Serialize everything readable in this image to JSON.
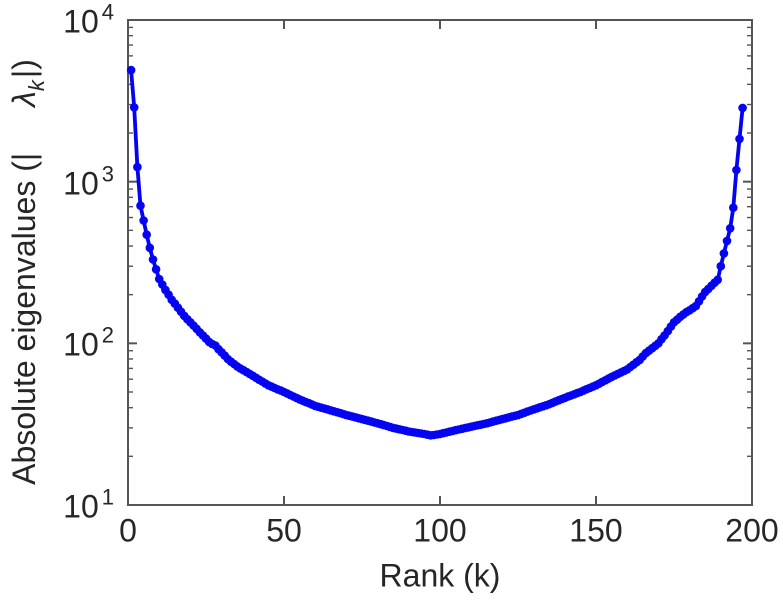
{
  "colors": {
    "background": "#ffffff",
    "line": "#0404f2",
    "axis": "#545454",
    "text": "#262626"
  },
  "chart_data": {
    "type": "line",
    "title": "",
    "xlabel": "Rank (k)",
    "ylabel": "Absolute eigenvalues (|λk|)",
    "ylabel_parts": {
      "prefix": "Absolute eigenvalues (|",
      "symbol": "λ",
      "subscript": "k",
      "suffix": "|)"
    },
    "x_scale": "linear",
    "y_scale": "log",
    "xlim": [
      0,
      200
    ],
    "ylim_log10": [
      1,
      4
    ],
    "x_ticks": [
      0,
      50,
      100,
      150,
      200
    ],
    "y_ticks": [
      {
        "value": 10,
        "base": "10",
        "exp": "1"
      },
      {
        "value": 100,
        "base": "10",
        "exp": "2"
      },
      {
        "value": 1000,
        "base": "10",
        "exp": "3"
      },
      {
        "value": 10000,
        "base": "10",
        "exp": "4"
      }
    ],
    "y_minor_ticks_per_decade": [
      2,
      3,
      4,
      5,
      6,
      7,
      8,
      9
    ],
    "grid": false,
    "legend": null,
    "marker": "filled-circle",
    "series": [
      {
        "name": "absolute eigenvalues |λk|",
        "color": "#0404f2",
        "x_start": 1,
        "x_step": 1,
        "values": [
          4900,
          2880,
          1230,
          710,
          575,
          470,
          390,
          330,
          287,
          250,
          231,
          214,
          200,
          186,
          176,
          166,
          157,
          148,
          141,
          135,
          129,
          123,
          117,
          112,
          107,
          102,
          99,
          97,
          92,
          88,
          84,
          80,
          77,
          74.5,
          72,
          70,
          68.2,
          66.4,
          64.7,
          63,
          61.3,
          59.6,
          58.1,
          56.5,
          55,
          54,
          52.9,
          51.9,
          51,
          50,
          49,
          47.9,
          46.9,
          46,
          45,
          44.2,
          43.3,
          42.6,
          41.8,
          41,
          40.5,
          40,
          39.5,
          39,
          38.5,
          38,
          37.5,
          37,
          36.5,
          36,
          35.6,
          35.2,
          34.8,
          34.4,
          34,
          33.6,
          33.2,
          32.8,
          32.4,
          32,
          31.6,
          31.2,
          30.8,
          30.4,
          30,
          29.7,
          29.4,
          29.1,
          28.8,
          28.5,
          28.3,
          28.1,
          27.9,
          27.7,
          27.5,
          27.2,
          27,
          27.1,
          27.3,
          27.5,
          27.8,
          28.1,
          28.4,
          28.7,
          29,
          29.3,
          29.6,
          29.9,
          30.2,
          30.5,
          30.8,
          31.1,
          31.4,
          31.7,
          32,
          32.4,
          32.8,
          33.2,
          33.6,
          34,
          34.4,
          34.8,
          35.2,
          35.6,
          36,
          36.6,
          37.2,
          37.8,
          38.4,
          39,
          39.6,
          40.2,
          40.8,
          41.4,
          42,
          42.8,
          43.6,
          44.4,
          45.2,
          46,
          46.8,
          47.6,
          48.4,
          49.2,
          50,
          51,
          52,
          53,
          54,
          55,
          56.3,
          57.7,
          59.1,
          60.5,
          62,
          63.3,
          64.7,
          66.1,
          67.5,
          69,
          71.4,
          73.8,
          76.4,
          79,
          83,
          87,
          90,
          93.3,
          96.6,
          100,
          106,
          112,
          119,
          127,
          135,
          140,
          146,
          151,
          156,
          160,
          165,
          170,
          182,
          195,
          208,
          217,
          227,
          237,
          247,
          300,
          360,
          430,
          515,
          690,
          1180,
          1840,
          2860
        ]
      }
    ]
  }
}
